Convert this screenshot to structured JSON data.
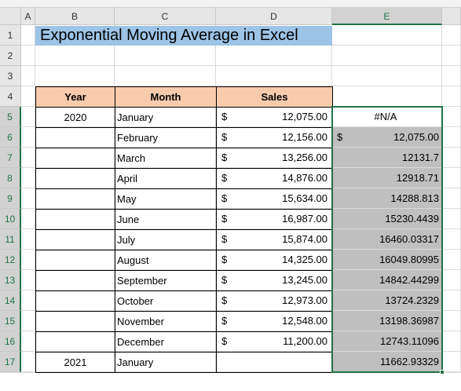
{
  "columns": [
    "A",
    "B",
    "C",
    "D",
    "E"
  ],
  "row_numbers": [
    1,
    2,
    3,
    4,
    5,
    6,
    7,
    8,
    9,
    10,
    11,
    12,
    13,
    14,
    15,
    16,
    17
  ],
  "title": "Exponential Moving Average in Excel",
  "table": {
    "headers": [
      "Year",
      "Month",
      "Sales"
    ],
    "rows": [
      {
        "year": "2020",
        "month": "January",
        "sales_currency": "$",
        "sales": "12,075.00",
        "ema": "#N/A"
      },
      {
        "month": "February",
        "sales_currency": "$",
        "sales": "12,156.00",
        "ema_currency": "$",
        "ema": "12,075.00"
      },
      {
        "month": "March",
        "sales_currency": "$",
        "sales": "13,256.00",
        "ema": "12131.7"
      },
      {
        "month": "April",
        "sales_currency": "$",
        "sales": "14,876.00",
        "ema": "12918.71"
      },
      {
        "month": "May",
        "sales_currency": "$",
        "sales": "15,634.00",
        "ema": "14288.813"
      },
      {
        "month": "June",
        "sales_currency": "$",
        "sales": "16,987.00",
        "ema": "15230.4439"
      },
      {
        "month": "July",
        "sales_currency": "$",
        "sales": "15,874.00",
        "ema": "16460.03317"
      },
      {
        "month": "August",
        "sales_currency": "$",
        "sales": "14,325.00",
        "ema": "16049.80995"
      },
      {
        "month": "September",
        "sales_currency": "$",
        "sales": "13,245.00",
        "ema": "14842.44299"
      },
      {
        "month": "October",
        "sales_currency": "$",
        "sales": "12,973.00",
        "ema": "13724.2329"
      },
      {
        "month": "November",
        "sales_currency": "$",
        "sales": "12,548.00",
        "ema": "13198.36987"
      },
      {
        "month": "December",
        "sales_currency": "$",
        "sales": "11,200.00",
        "ema": "12743.11096"
      },
      {
        "year": "2021",
        "month": "January",
        "ema": "11662.93329"
      }
    ]
  }
}
